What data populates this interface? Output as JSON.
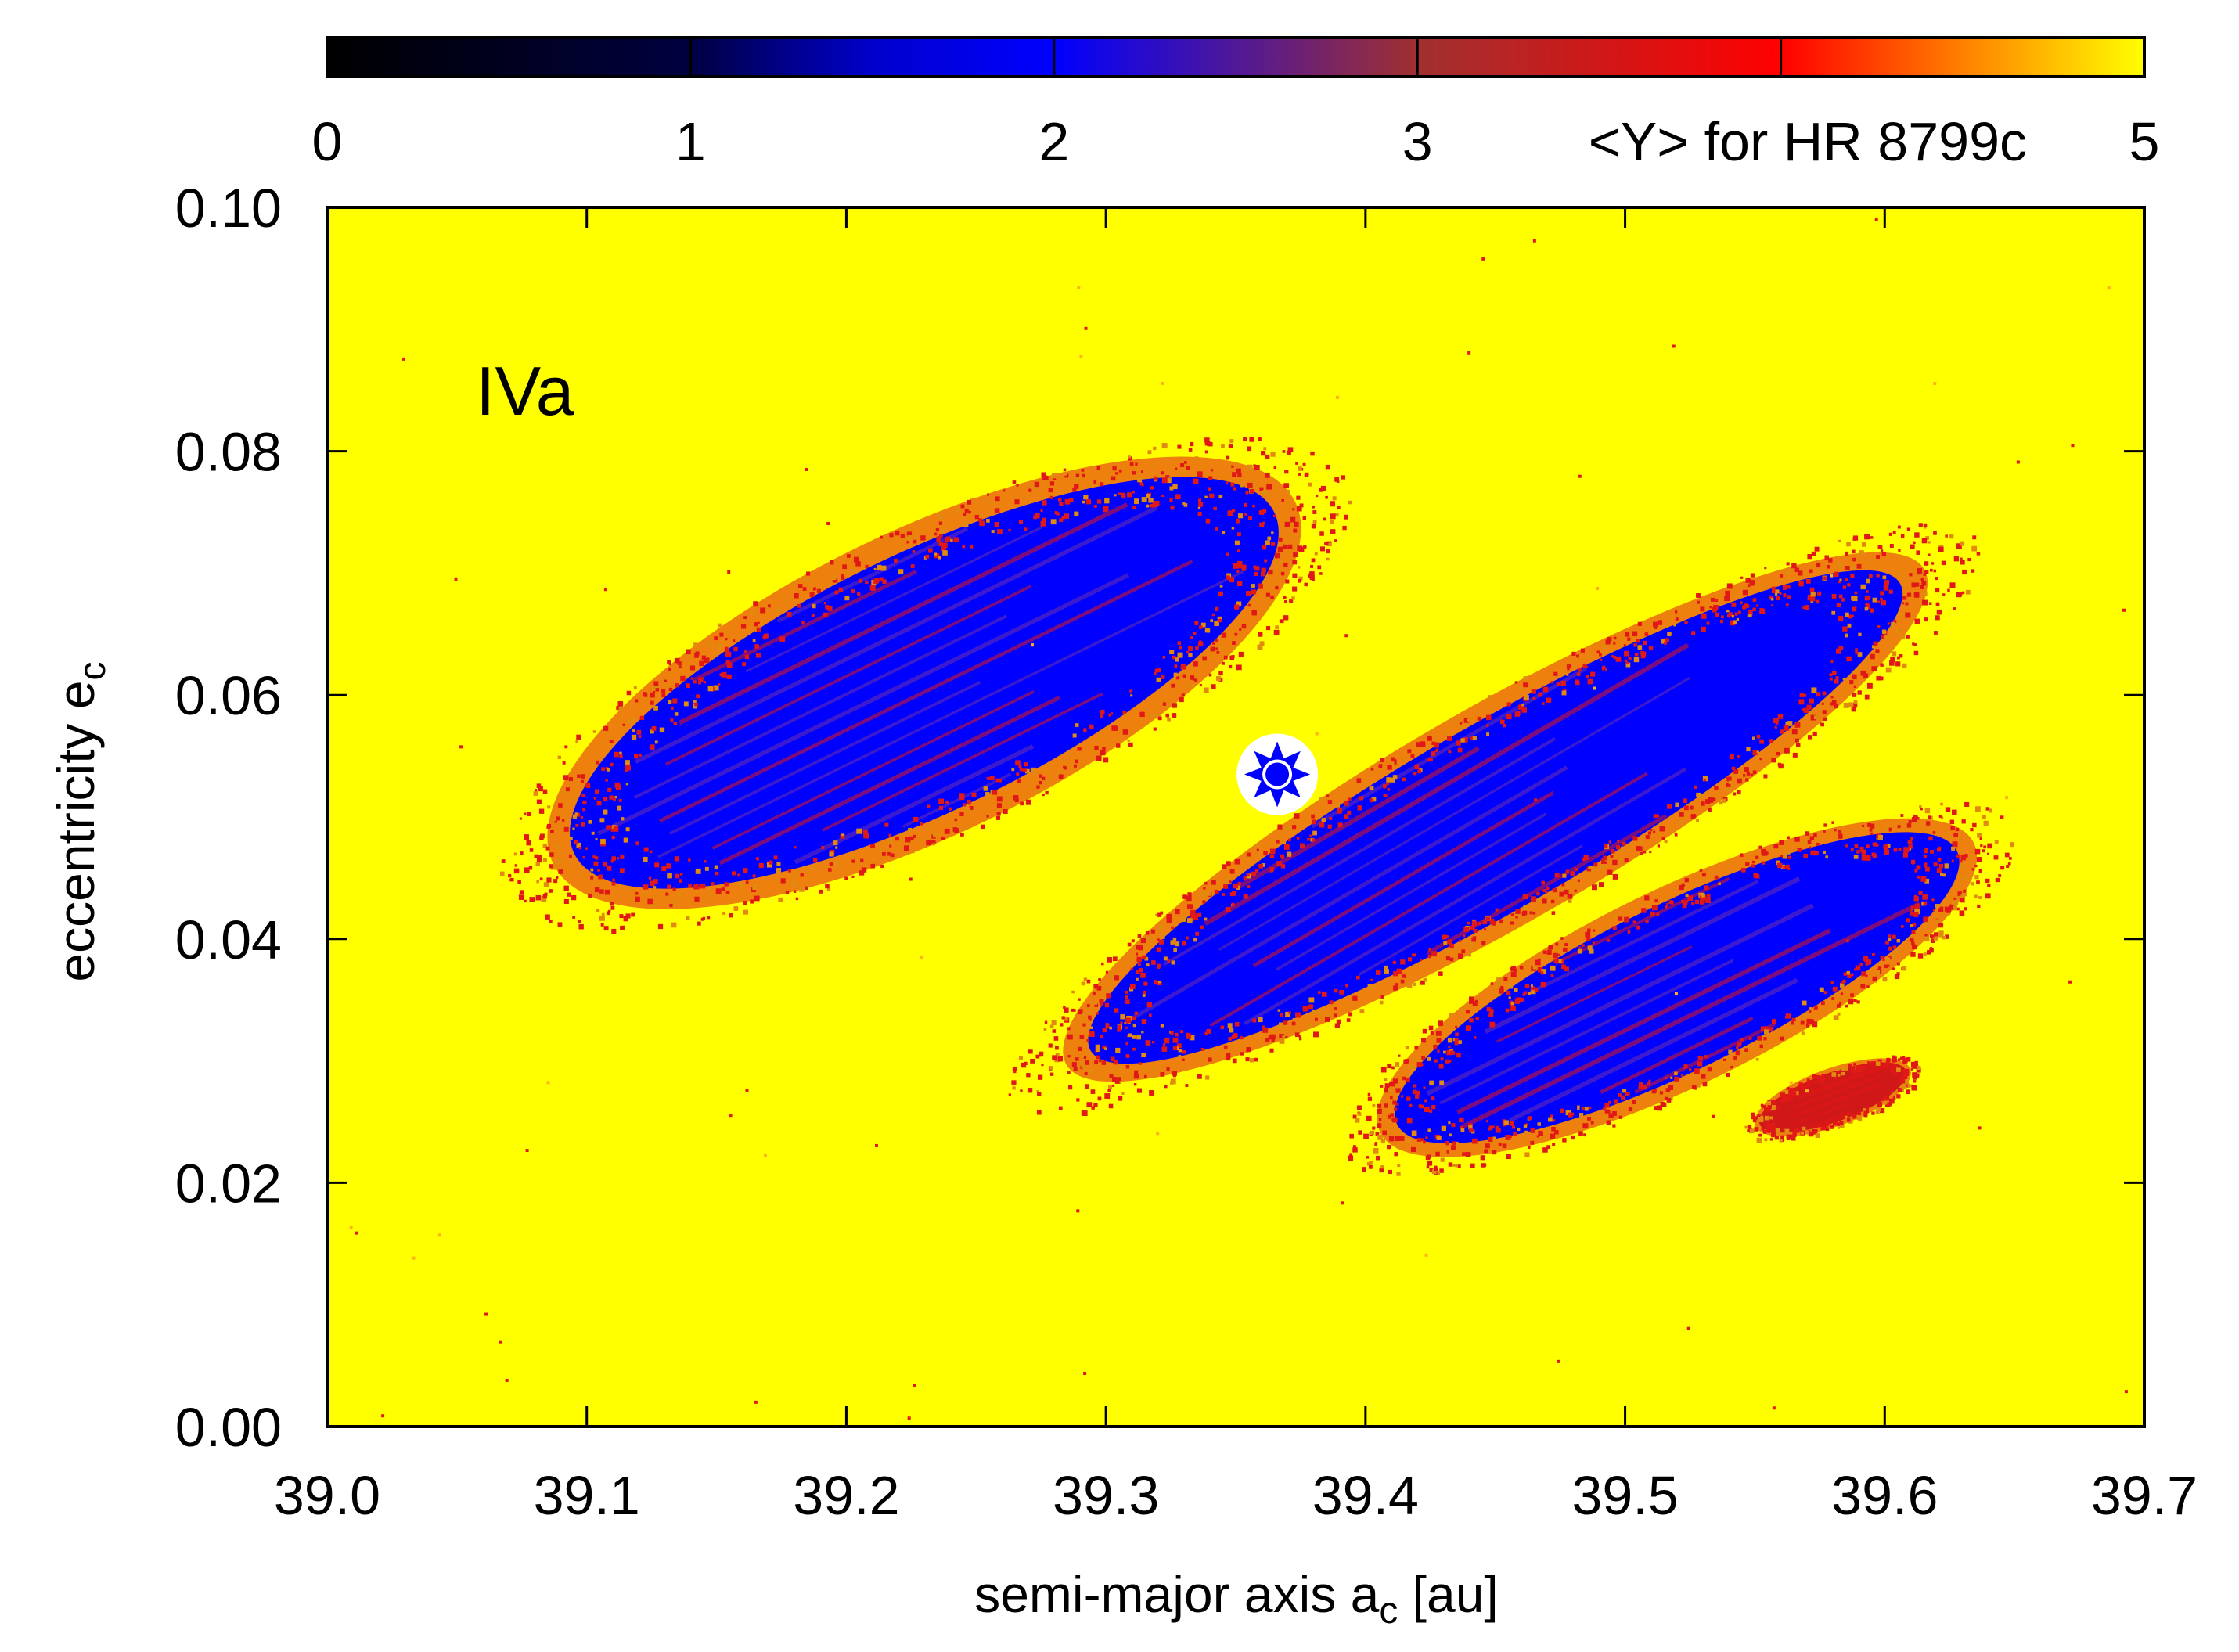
{
  "chart_data": {
    "type": "heatmap",
    "title": "",
    "panel_label": "IVa",
    "xlabel": {
      "base": "semi-major axis a",
      "sub": "c",
      "suffix": " [au]"
    },
    "ylabel": {
      "base": "eccentricity e",
      "sub": "c"
    },
    "xlim": [
      39.0,
      39.7
    ],
    "ylim": [
      0.0,
      0.1
    ],
    "x_ticks": [
      "39.0",
      "39.1",
      "39.2",
      "39.3",
      "39.4",
      "39.5",
      "39.6",
      "39.7"
    ],
    "x_tick_values": [
      39.0,
      39.1,
      39.2,
      39.3,
      39.4,
      39.5,
      39.6,
      39.7
    ],
    "y_ticks": [
      "0.00",
      "0.02",
      "0.04",
      "0.06",
      "0.08",
      "0.10"
    ],
    "y_tick_values": [
      0.0,
      0.02,
      0.04,
      0.06,
      0.08,
      0.1
    ],
    "colorbar": {
      "label": "<Y> for HR 8799c",
      "range": [
        0,
        5
      ],
      "ticks": [
        "0",
        "1",
        "2",
        "3",
        "4",
        "5"
      ],
      "tick_values": [
        0,
        1,
        2,
        3,
        4,
        5
      ],
      "labeled_ticks": [
        "0",
        "1",
        "2",
        "3",
        "5"
      ],
      "stops": [
        {
          "value": 0,
          "color": "#000000"
        },
        {
          "value": 1,
          "color": "#000040"
        },
        {
          "value": 1.5,
          "color": "#0000cc"
        },
        {
          "value": 2,
          "color": "#0000ff"
        },
        {
          "value": 3,
          "color": "#a03030"
        },
        {
          "value": 4,
          "color": "#ff0000"
        },
        {
          "value": 5,
          "color": "#ffff00"
        }
      ]
    },
    "background_value": 5,
    "regular_regions": [
      {
        "name": "upper-left-stripe-band",
        "center": [
          39.23,
          0.061
        ],
        "half_width_a": 0.15,
        "half_height_e": 0.0105,
        "rotation_deg": -26,
        "value": 2.0
      },
      {
        "name": "central-diagonal-band",
        "center": [
          39.45,
          0.05
        ],
        "half_width_a": 0.18,
        "half_height_e": 0.0075,
        "rotation_deg": -30,
        "value": 2.0
      },
      {
        "name": "lower-right-stripe-band",
        "center": [
          39.52,
          0.036
        ],
        "half_width_a": 0.12,
        "half_height_e": 0.0068,
        "rotation_deg": -26,
        "value": 2.0
      },
      {
        "name": "small-lower-right-patch",
        "center": [
          39.58,
          0.027
        ],
        "half_width_a": 0.03,
        "half_height_e": 0.002,
        "rotation_deg": -20,
        "value": 3.5
      }
    ],
    "best_fit_marker": {
      "a": 39.366,
      "e": 0.0535
    },
    "colors": {
      "chaotic": "#ffff00",
      "regular": "#0000ff",
      "boundary": "#e01818",
      "marker_fill": "#ffffff",
      "marker_star": "#0000ff"
    }
  }
}
